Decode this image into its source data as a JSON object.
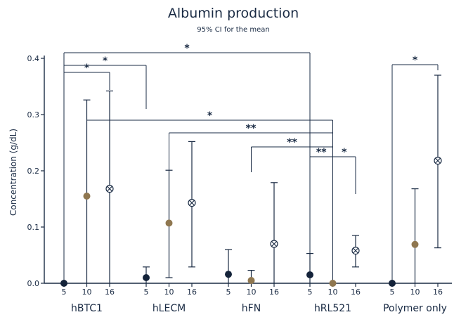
{
  "chart_data": {
    "type": "scatter",
    "title": "Albumin production",
    "subtitle": "95% CI for the mean",
    "ylabel": "Concentration (g/dL)",
    "ylim": [
      0,
      0.4
    ],
    "y_ticks": [
      "0.0",
      "0.1",
      "0.2",
      "0.3",
      "0.4"
    ],
    "groups": [
      {
        "name": "hBTC1",
        "points": [
          {
            "x": "5",
            "mean": 0.0,
            "ci": null
          },
          {
            "x": "10",
            "mean": 0.155,
            "ci": [
              0.0,
              0.326
            ]
          },
          {
            "x": "16",
            "mean": 0.168,
            "ci": [
              0.0,
              0.342
            ]
          }
        ]
      },
      {
        "name": "hLECM",
        "points": [
          {
            "x": "5",
            "mean": 0.01,
            "ci": [
              0.0,
              0.029
            ]
          },
          {
            "x": "10",
            "mean": 0.107,
            "ci": [
              0.01,
              0.201
            ]
          },
          {
            "x": "16",
            "mean": 0.143,
            "ci": [
              0.029,
              0.252
            ]
          }
        ]
      },
      {
        "name": "hFN",
        "points": [
          {
            "x": "5",
            "mean": 0.016,
            "ci": [
              0.0,
              0.06
            ]
          },
          {
            "x": "10",
            "mean": 0.005,
            "ci": [
              0.0,
              0.023
            ]
          },
          {
            "x": "16",
            "mean": 0.07,
            "ci": [
              0.0,
              0.179
            ]
          }
        ]
      },
      {
        "name": "hRL521",
        "points": [
          {
            "x": "5",
            "mean": 0.015,
            "ci": [
              0.0,
              0.053
            ]
          },
          {
            "x": "10",
            "mean": 0.0,
            "ci": null
          },
          {
            "x": "16",
            "mean": 0.058,
            "ci": [
              0.029,
              0.085
            ]
          }
        ]
      },
      {
        "name": "Polymer only",
        "points": [
          {
            "x": "5",
            "mean": 0.0,
            "ci": null
          },
          {
            "x": "10",
            "mean": 0.069,
            "ci": [
              0.0,
              0.168
            ]
          },
          {
            "x": "16",
            "mean": 0.218,
            "ci": [
              0.063,
              0.37
            ]
          }
        ]
      }
    ],
    "significance": [
      {
        "label": "*",
        "from": [
          0,
          "5"
        ],
        "to": [
          3,
          "5"
        ]
      },
      {
        "label": "*",
        "from": [
          0,
          "5"
        ],
        "to": [
          1,
          "5"
        ]
      },
      {
        "label": "*",
        "from": [
          0,
          "5"
        ],
        "to": [
          0,
          "16"
        ]
      },
      {
        "label": "*",
        "from": [
          0,
          "10"
        ],
        "to": [
          3,
          "10"
        ]
      },
      {
        "label": "**",
        "from": [
          1,
          "10"
        ],
        "to": [
          3,
          "10"
        ]
      },
      {
        "label": "**",
        "from": [
          2,
          "10"
        ],
        "to": [
          3,
          "10"
        ]
      },
      {
        "label": "**",
        "from": [
          3,
          "5"
        ],
        "to": [
          3,
          "10"
        ]
      },
      {
        "label": "*",
        "from": [
          3,
          "10"
        ],
        "to": [
          3,
          "16"
        ]
      },
      {
        "label": "*",
        "from": [
          4,
          "5"
        ],
        "to": [
          4,
          "16"
        ]
      }
    ],
    "marker_styles": {
      "5": "filled-dark",
      "10": "filled-brown",
      "16": "circled-x"
    },
    "colors": {
      "dark": "#14233a",
      "brown": "#8f7750",
      "line": "#1a2b44"
    }
  }
}
